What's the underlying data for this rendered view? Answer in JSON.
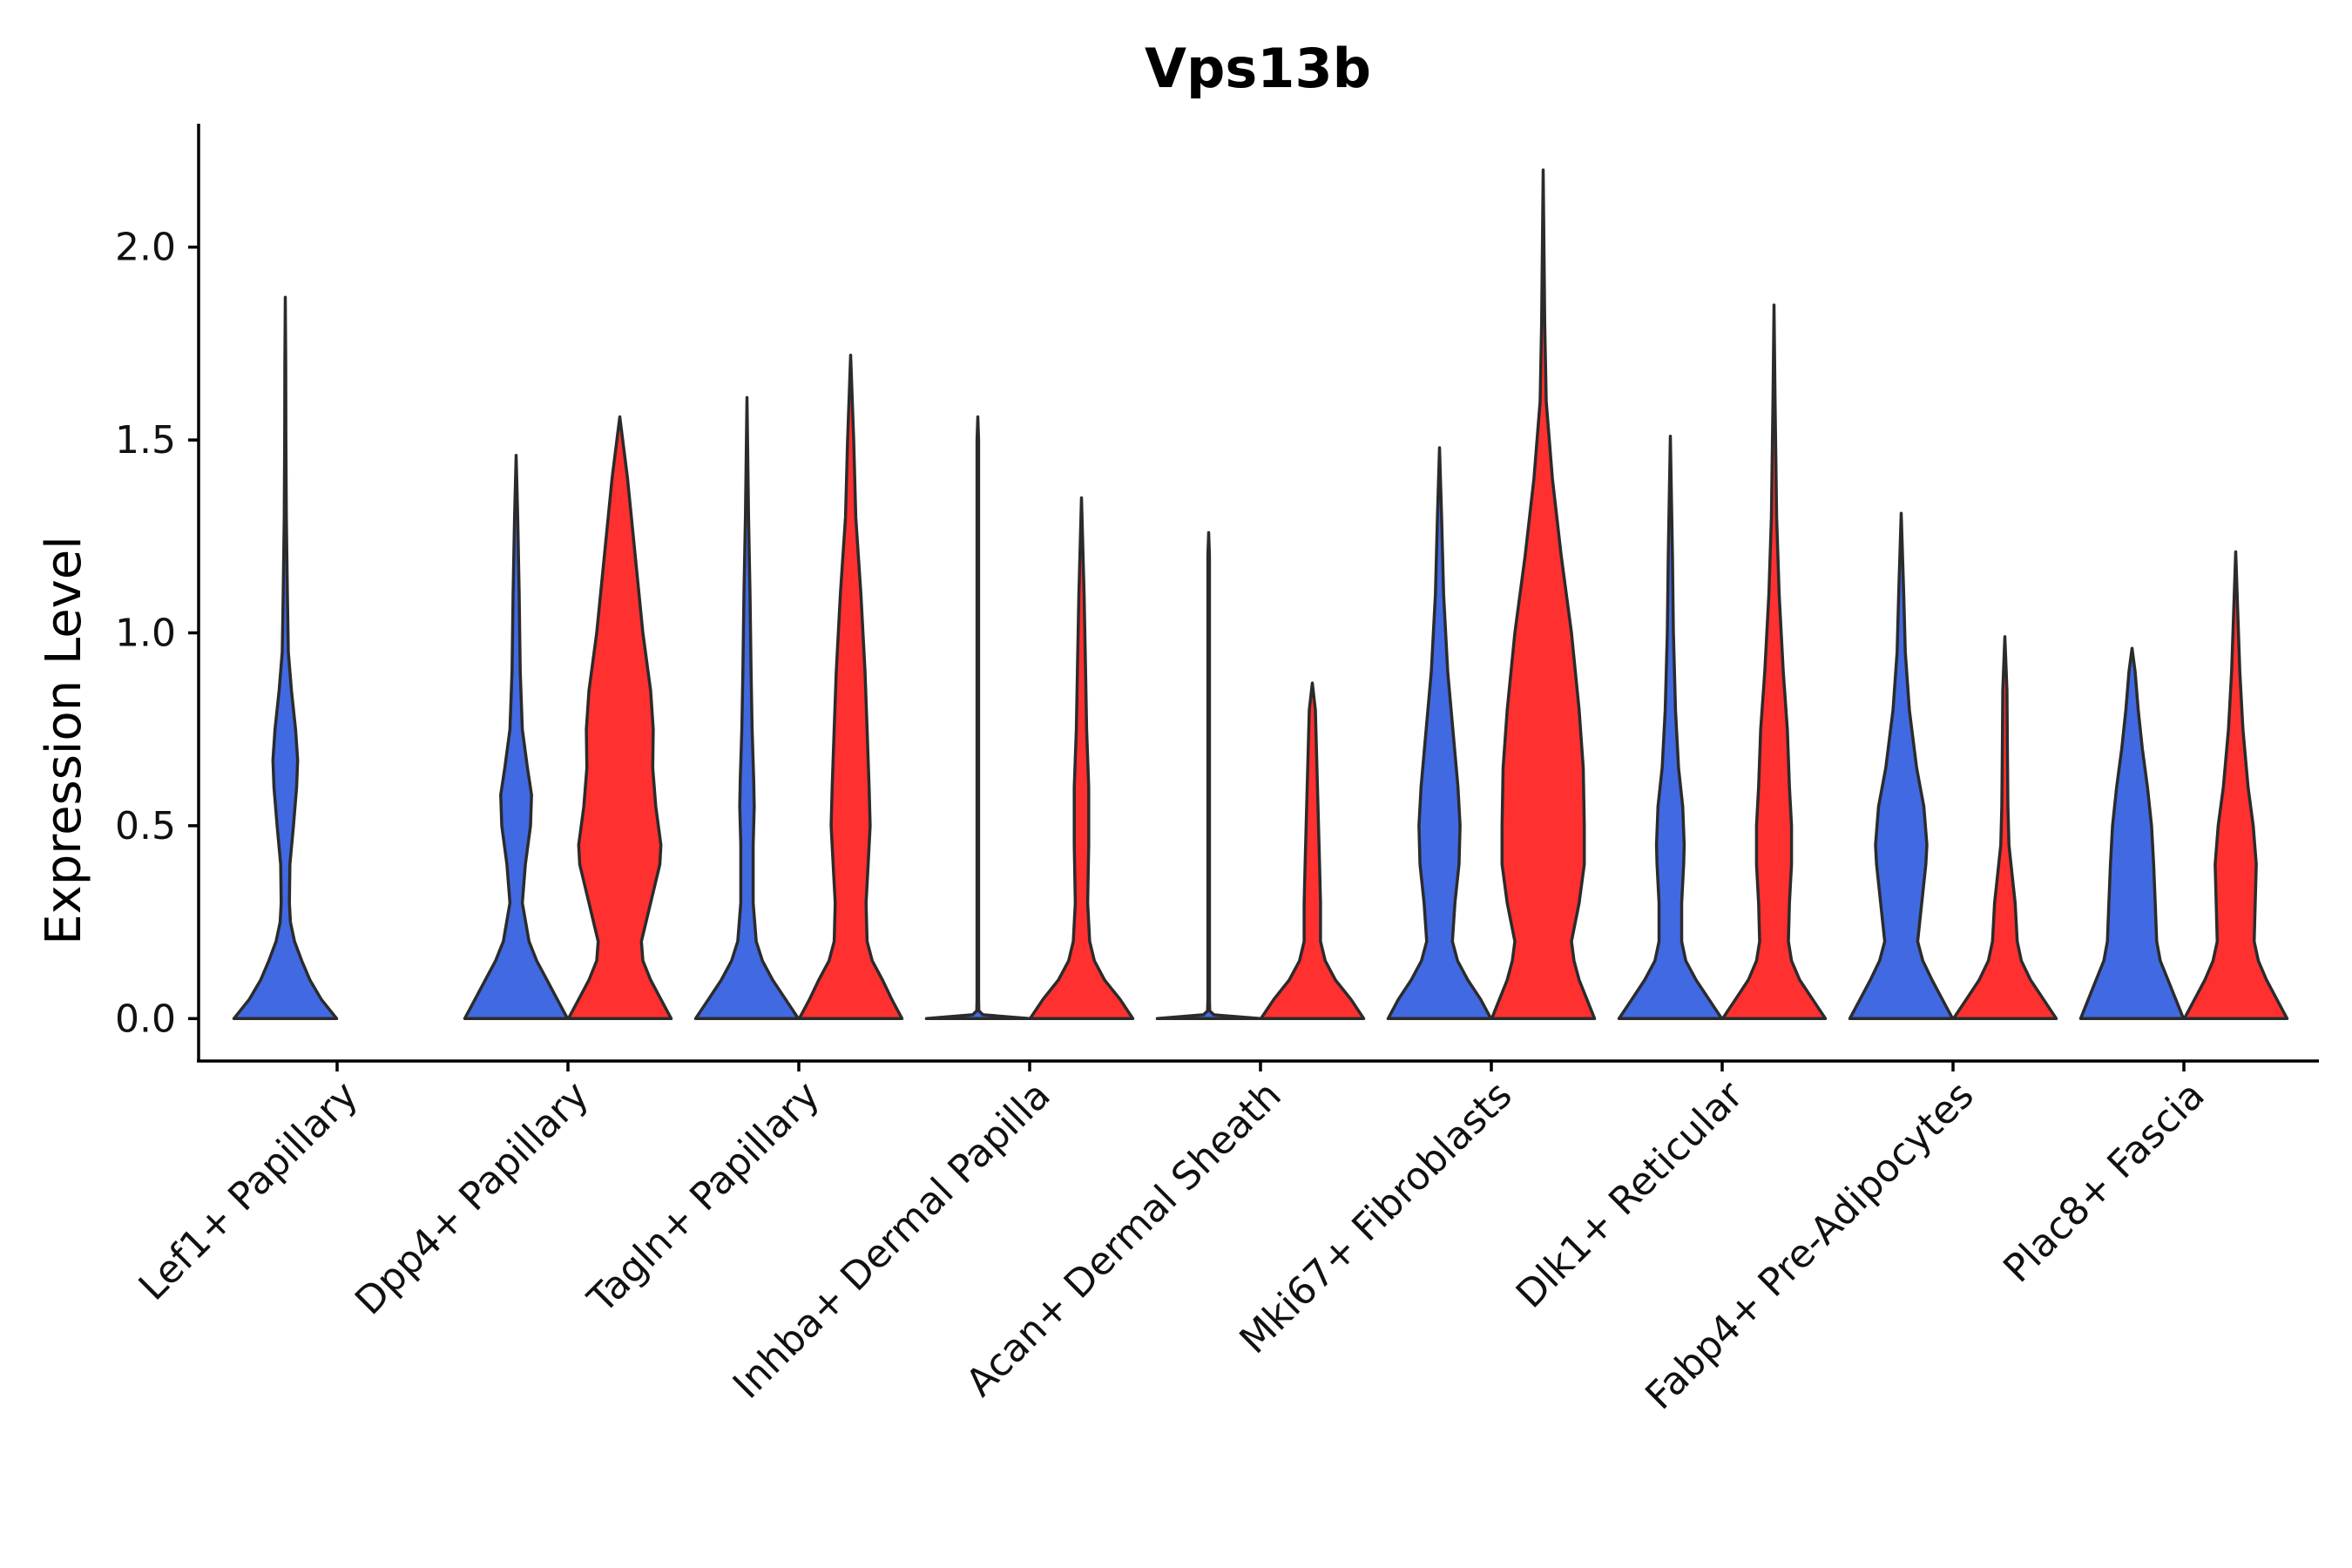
{
  "chart_data": {
    "type": "violin",
    "title": "Vps13b",
    "xlabel": "",
    "ylabel": "Expression Level",
    "ylim": [
      -0.11,
      2.32
    ],
    "yticks": [
      0.0,
      0.5,
      1.0,
      1.5,
      2.0
    ],
    "ytick_labels": [
      "0.0",
      "0.5",
      "1.0",
      "1.5",
      "2.0"
    ],
    "categories": [
      "Lef1+ Papillary",
      "Dpp4+ Papillary",
      "Tagln+ Papillary",
      "Inhba+ Dermal Papilla",
      "Acan+ Dermal Sheath",
      "Mki67+ Fibroblasts",
      "Dlk1+ Reticular",
      "Fabp4+ Pre-Adipocytes",
      "Plac8+ Fascia"
    ],
    "split": true,
    "colors": {
      "group1": "#4169E1",
      "group2": "#FF3030",
      "outline": "#2b2b2b"
    },
    "violins": [
      {
        "category": "Lef1+ Papillary",
        "group": 1,
        "max": 1.87,
        "profile": [
          [
            0.0,
            1.0
          ],
          [
            0.05,
            0.7
          ],
          [
            0.1,
            0.48
          ],
          [
            0.15,
            0.32
          ],
          [
            0.2,
            0.18
          ],
          [
            0.25,
            0.1
          ],
          [
            0.3,
            0.08
          ],
          [
            0.4,
            0.09
          ],
          [
            0.5,
            0.16
          ],
          [
            0.6,
            0.22
          ],
          [
            0.67,
            0.24
          ],
          [
            0.75,
            0.2
          ],
          [
            0.85,
            0.12
          ],
          [
            0.95,
            0.06
          ],
          [
            1.1,
            0.04
          ],
          [
            1.3,
            0.02
          ],
          [
            1.5,
            0.012
          ],
          [
            1.7,
            0.008
          ],
          [
            1.87,
            0.0
          ]
        ]
      },
      {
        "category": "Dpp4+ Papillary",
        "group": 1,
        "max": 1.46,
        "profile": [
          [
            0.0,
            1.0
          ],
          [
            0.05,
            0.8
          ],
          [
            0.1,
            0.6
          ],
          [
            0.15,
            0.4
          ],
          [
            0.2,
            0.25
          ],
          [
            0.3,
            0.12
          ],
          [
            0.4,
            0.18
          ],
          [
            0.5,
            0.28
          ],
          [
            0.58,
            0.3
          ],
          [
            0.65,
            0.22
          ],
          [
            0.75,
            0.12
          ],
          [
            0.9,
            0.08
          ],
          [
            1.1,
            0.06
          ],
          [
            1.3,
            0.03
          ],
          [
            1.46,
            0.0
          ]
        ]
      },
      {
        "category": "Dpp4+ Papillary",
        "group": 2,
        "max": 1.56,
        "profile": [
          [
            0.0,
            1.0
          ],
          [
            0.05,
            0.8
          ],
          [
            0.1,
            0.6
          ],
          [
            0.15,
            0.45
          ],
          [
            0.2,
            0.42
          ],
          [
            0.3,
            0.6
          ],
          [
            0.4,
            0.78
          ],
          [
            0.45,
            0.8
          ],
          [
            0.55,
            0.7
          ],
          [
            0.65,
            0.64
          ],
          [
            0.75,
            0.65
          ],
          [
            0.85,
            0.6
          ],
          [
            1.0,
            0.45
          ],
          [
            1.2,
            0.3
          ],
          [
            1.4,
            0.15
          ],
          [
            1.56,
            0.0
          ]
        ]
      },
      {
        "category": "Tagln+ Papillary",
        "group": 1,
        "max": 1.61,
        "profile": [
          [
            0.0,
            1.0
          ],
          [
            0.05,
            0.75
          ],
          [
            0.1,
            0.5
          ],
          [
            0.15,
            0.3
          ],
          [
            0.2,
            0.18
          ],
          [
            0.3,
            0.12
          ],
          [
            0.45,
            0.12
          ],
          [
            0.55,
            0.14
          ],
          [
            0.62,
            0.13
          ],
          [
            0.75,
            0.1
          ],
          [
            0.9,
            0.08
          ],
          [
            1.1,
            0.06
          ],
          [
            1.3,
            0.03
          ],
          [
            1.61,
            0.0
          ]
        ]
      },
      {
        "category": "Tagln+ Papillary",
        "group": 2,
        "max": 1.72,
        "profile": [
          [
            0.0,
            1.0
          ],
          [
            0.05,
            0.8
          ],
          [
            0.1,
            0.62
          ],
          [
            0.15,
            0.42
          ],
          [
            0.2,
            0.32
          ],
          [
            0.3,
            0.3
          ],
          [
            0.4,
            0.34
          ],
          [
            0.5,
            0.38
          ],
          [
            0.6,
            0.36
          ],
          [
            0.75,
            0.32
          ],
          [
            0.9,
            0.28
          ],
          [
            1.1,
            0.2
          ],
          [
            1.3,
            0.1
          ],
          [
            1.5,
            0.06
          ],
          [
            1.72,
            0.0
          ]
        ]
      },
      {
        "category": "Inhba+ Dermal Papilla",
        "group": 1,
        "max": 1.56,
        "profile": [
          [
            0.0,
            1.0
          ],
          [
            0.01,
            0.1
          ],
          [
            0.02,
            0.02
          ],
          [
            0.05,
            0.015
          ],
          [
            1.5,
            0.015
          ],
          [
            1.56,
            0.0
          ]
        ]
      },
      {
        "category": "Inhba+ Dermal Papilla",
        "group": 2,
        "max": 1.35,
        "profile": [
          [
            0.0,
            1.0
          ],
          [
            0.05,
            0.75
          ],
          [
            0.1,
            0.45
          ],
          [
            0.15,
            0.25
          ],
          [
            0.2,
            0.16
          ],
          [
            0.3,
            0.12
          ],
          [
            0.45,
            0.14
          ],
          [
            0.6,
            0.14
          ],
          [
            0.75,
            0.1
          ],
          [
            0.9,
            0.08
          ],
          [
            1.1,
            0.05
          ],
          [
            1.35,
            0.0
          ]
        ]
      },
      {
        "category": "Acan+ Dermal Sheath",
        "group": 1,
        "max": 1.26,
        "profile": [
          [
            0.0,
            1.0
          ],
          [
            0.01,
            0.1
          ],
          [
            0.02,
            0.02
          ],
          [
            0.05,
            0.015
          ],
          [
            1.2,
            0.015
          ],
          [
            1.26,
            0.0
          ]
        ]
      },
      {
        "category": "Acan+ Dermal Sheath",
        "group": 2,
        "max": 0.87,
        "profile": [
          [
            0.0,
            1.0
          ],
          [
            0.05,
            0.75
          ],
          [
            0.1,
            0.45
          ],
          [
            0.15,
            0.25
          ],
          [
            0.2,
            0.16
          ],
          [
            0.3,
            0.16
          ],
          [
            0.4,
            0.14
          ],
          [
            0.5,
            0.12
          ],
          [
            0.6,
            0.1
          ],
          [
            0.7,
            0.08
          ],
          [
            0.8,
            0.06
          ],
          [
            0.87,
            0.0
          ]
        ]
      },
      {
        "category": "Mki67+ Fibroblasts",
        "group": 1,
        "max": 1.48,
        "profile": [
          [
            0.0,
            1.0
          ],
          [
            0.05,
            0.8
          ],
          [
            0.1,
            0.55
          ],
          [
            0.15,
            0.35
          ],
          [
            0.2,
            0.25
          ],
          [
            0.3,
            0.3
          ],
          [
            0.4,
            0.38
          ],
          [
            0.5,
            0.4
          ],
          [
            0.6,
            0.36
          ],
          [
            0.75,
            0.26
          ],
          [
            0.9,
            0.16
          ],
          [
            1.1,
            0.08
          ],
          [
            1.3,
            0.04
          ],
          [
            1.48,
            0.0
          ]
        ]
      },
      {
        "category": "Mki67+ Fibroblasts",
        "group": 2,
        "max": 2.2,
        "profile": [
          [
            0.0,
            1.0
          ],
          [
            0.05,
            0.85
          ],
          [
            0.1,
            0.7
          ],
          [
            0.15,
            0.6
          ],
          [
            0.2,
            0.55
          ],
          [
            0.3,
            0.7
          ],
          [
            0.4,
            0.8
          ],
          [
            0.5,
            0.8
          ],
          [
            0.65,
            0.78
          ],
          [
            0.8,
            0.7
          ],
          [
            1.0,
            0.55
          ],
          [
            1.2,
            0.35
          ],
          [
            1.4,
            0.18
          ],
          [
            1.6,
            0.06
          ],
          [
            1.8,
            0.03
          ],
          [
            2.2,
            0.0
          ]
        ]
      },
      {
        "category": "Dlk1+ Reticular",
        "group": 1,
        "max": 1.51,
        "profile": [
          [
            0.0,
            1.0
          ],
          [
            0.05,
            0.75
          ],
          [
            0.1,
            0.5
          ],
          [
            0.15,
            0.3
          ],
          [
            0.2,
            0.22
          ],
          [
            0.3,
            0.22
          ],
          [
            0.4,
            0.26
          ],
          [
            0.45,
            0.27
          ],
          [
            0.55,
            0.24
          ],
          [
            0.65,
            0.16
          ],
          [
            0.8,
            0.1
          ],
          [
            1.0,
            0.06
          ],
          [
            1.2,
            0.04
          ],
          [
            1.51,
            0.0
          ]
        ]
      },
      {
        "category": "Dlk1+ Reticular",
        "group": 2,
        "max": 1.85,
        "profile": [
          [
            0.0,
            1.0
          ],
          [
            0.05,
            0.75
          ],
          [
            0.1,
            0.5
          ],
          [
            0.15,
            0.34
          ],
          [
            0.2,
            0.28
          ],
          [
            0.3,
            0.3
          ],
          [
            0.4,
            0.34
          ],
          [
            0.5,
            0.34
          ],
          [
            0.6,
            0.3
          ],
          [
            0.75,
            0.26
          ],
          [
            0.9,
            0.18
          ],
          [
            1.1,
            0.1
          ],
          [
            1.3,
            0.05
          ],
          [
            1.6,
            0.02
          ],
          [
            1.85,
            0.0
          ]
        ]
      },
      {
        "category": "Fabp4+ Pre-Adipocytes",
        "group": 1,
        "max": 1.31,
        "profile": [
          [
            0.0,
            1.0
          ],
          [
            0.05,
            0.8
          ],
          [
            0.1,
            0.6
          ],
          [
            0.15,
            0.42
          ],
          [
            0.2,
            0.32
          ],
          [
            0.3,
            0.4
          ],
          [
            0.4,
            0.48
          ],
          [
            0.45,
            0.5
          ],
          [
            0.55,
            0.44
          ],
          [
            0.65,
            0.3
          ],
          [
            0.8,
            0.16
          ],
          [
            0.95,
            0.08
          ],
          [
            1.1,
            0.05
          ],
          [
            1.31,
            0.0
          ]
        ]
      },
      {
        "category": "Fabp4+ Pre-Adipocytes",
        "group": 2,
        "max": 0.99,
        "profile": [
          [
            0.0,
            1.0
          ],
          [
            0.05,
            0.75
          ],
          [
            0.1,
            0.5
          ],
          [
            0.15,
            0.32
          ],
          [
            0.2,
            0.24
          ],
          [
            0.3,
            0.2
          ],
          [
            0.35,
            0.16
          ],
          [
            0.45,
            0.08
          ],
          [
            0.55,
            0.06
          ],
          [
            0.7,
            0.05
          ],
          [
            0.85,
            0.04
          ],
          [
            0.99,
            0.0
          ]
        ]
      },
      {
        "category": "Plac8+ Fascia",
        "group": 1,
        "max": 0.96,
        "profile": [
          [
            0.0,
            1.0
          ],
          [
            0.05,
            0.85
          ],
          [
            0.1,
            0.7
          ],
          [
            0.15,
            0.55
          ],
          [
            0.2,
            0.48
          ],
          [
            0.3,
            0.45
          ],
          [
            0.4,
            0.42
          ],
          [
            0.5,
            0.38
          ],
          [
            0.6,
            0.3
          ],
          [
            0.7,
            0.2
          ],
          [
            0.8,
            0.12
          ],
          [
            0.9,
            0.06
          ],
          [
            0.96,
            0.0
          ]
        ]
      },
      {
        "category": "Plac8+ Fascia",
        "group": 2,
        "max": 1.21,
        "profile": [
          [
            0.0,
            1.0
          ],
          [
            0.05,
            0.8
          ],
          [
            0.1,
            0.6
          ],
          [
            0.15,
            0.44
          ],
          [
            0.2,
            0.36
          ],
          [
            0.3,
            0.38
          ],
          [
            0.4,
            0.4
          ],
          [
            0.5,
            0.34
          ],
          [
            0.6,
            0.24
          ],
          [
            0.75,
            0.14
          ],
          [
            0.9,
            0.08
          ],
          [
            1.05,
            0.04
          ],
          [
            1.21,
            0.0
          ]
        ]
      }
    ]
  }
}
